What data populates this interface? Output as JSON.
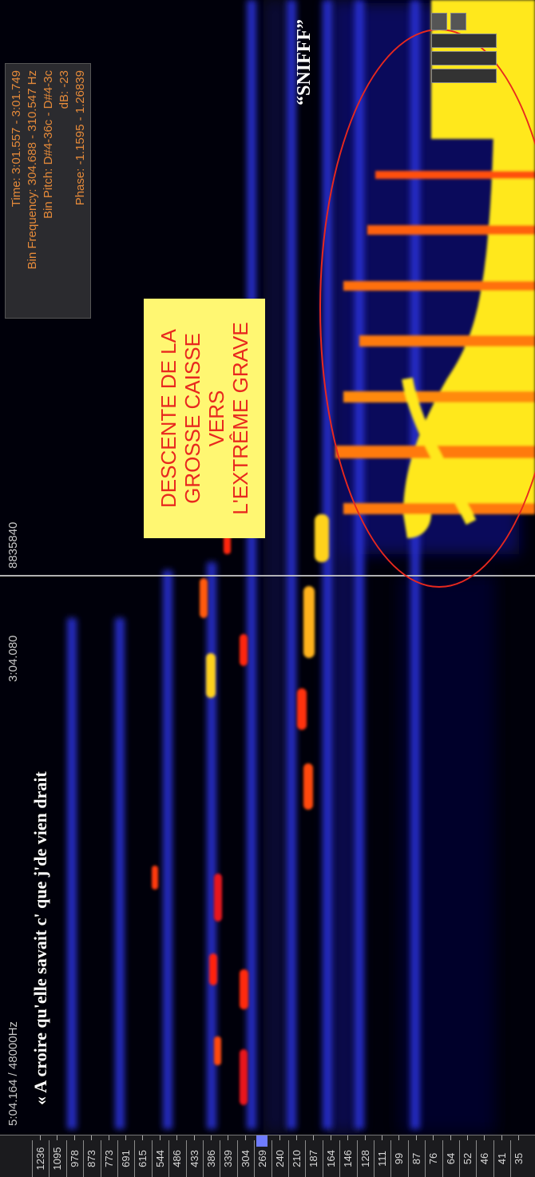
{
  "info": {
    "time": "Time: 3:01.557 - 3:01.749",
    "bin_frequency": "Bin Frequency: 304.688 - 310.547 Hz",
    "bin_pitch": "Bin Pitch: D#4-36c - D#4-3c",
    "db": "dB: -23",
    "phase": "Phase: -1.1595 - 1.26839"
  },
  "cursor": {
    "time": "3:04.080",
    "position": "8835840"
  },
  "status": {
    "readout": "5:04.164 / 48000Hz"
  },
  "lyrics": "« A croire qu'elle savait  c' que  j'de vien drait",
  "annotation": "DESCENTE DE LA\nGROSSE CAISSE VERS\nL'EXTRÊME GRAVE",
  "sniff": "“SNIFFF”",
  "frequency_scale": {
    "labels": [
      "1236",
      "1095",
      "978",
      "873",
      "773",
      "691",
      "615",
      "544",
      "486",
      "433",
      "386",
      "339",
      "304",
      "269",
      "240",
      "210",
      "187",
      "164",
      "146",
      "128",
      "111",
      "99",
      "87",
      "76",
      "64",
      "52",
      "46",
      "41",
      "35"
    ],
    "highlighted_indices": [
      13
    ]
  },
  "colors": {
    "background": "#00000a",
    "info_text": "#e58a3a",
    "annotation_bg": "#fff772",
    "annotation_text": "#e8281e",
    "ellipse": "#e8281e",
    "freq_marker": "#6f7cff"
  }
}
